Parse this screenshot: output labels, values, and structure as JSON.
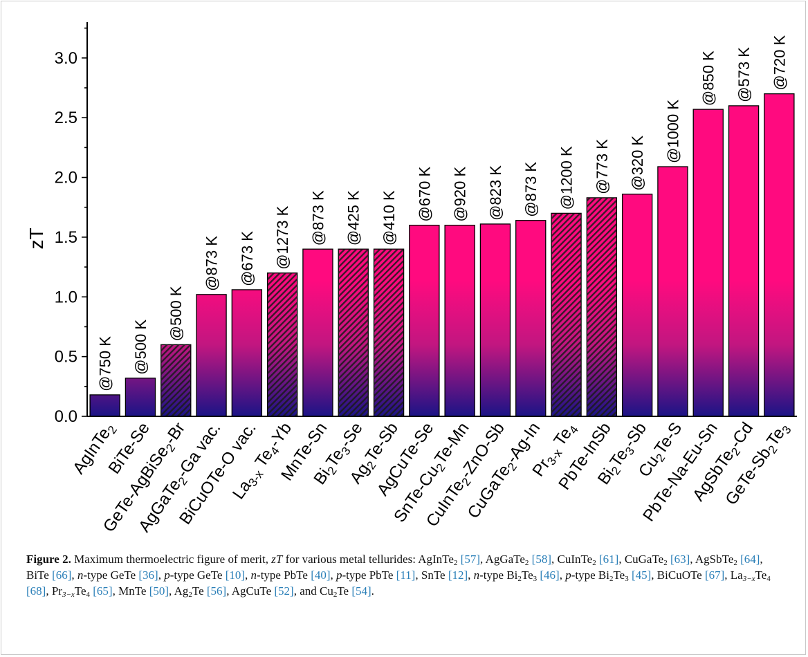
{
  "chart_data": {
    "type": "bar",
    "ylabel": "zT",
    "ylim": [
      0,
      3.3
    ],
    "yticks": [
      "0.0",
      "0.5",
      "1.0",
      "1.5",
      "2.0",
      "2.5",
      "3.0"
    ],
    "grid": false,
    "legend": "none",
    "bars": [
      {
        "parts": [
          [
            "AgInTe",
            ""
          ],
          [
            "2",
            "sub"
          ]
        ],
        "value": 0.18,
        "label": "@750 K",
        "hatched": false
      },
      {
        "parts": [
          [
            "BiTe-Se",
            ""
          ]
        ],
        "value": 0.32,
        "label": "@500 K",
        "hatched": false
      },
      {
        "parts": [
          [
            "GeTe-AgBiSe",
            ""
          ],
          [
            "2",
            "sub"
          ],
          [
            "-Br",
            ""
          ]
        ],
        "value": 0.6,
        "label": "@500 K",
        "hatched": true
      },
      {
        "parts": [
          [
            "AgGaTe",
            ""
          ],
          [
            "2",
            "sub"
          ],
          [
            "-Ga vac.",
            ""
          ]
        ],
        "value": 1.02,
        "label": "@873 K",
        "hatched": false
      },
      {
        "parts": [
          [
            "BiCuOTe-O vac.",
            ""
          ]
        ],
        "value": 1.06,
        "label": "@673 K",
        "hatched": false
      },
      {
        "parts": [
          [
            "La",
            ""
          ],
          [
            "3-x",
            "sub"
          ],
          [
            " Te",
            ""
          ],
          [
            "4",
            "sub"
          ],
          [
            "-Yb",
            ""
          ]
        ],
        "value": 1.2,
        "label": "@1273 K",
        "hatched": true
      },
      {
        "parts": [
          [
            "MnTe-Sn",
            ""
          ]
        ],
        "value": 1.4,
        "label": "@873 K",
        "hatched": false
      },
      {
        "parts": [
          [
            "Bi",
            ""
          ],
          [
            "2",
            "sub"
          ],
          [
            "Te",
            ""
          ],
          [
            "3",
            "sub"
          ],
          [
            "-Se",
            ""
          ]
        ],
        "value": 1.4,
        "label": "@425 K",
        "hatched": true
      },
      {
        "parts": [
          [
            "Ag",
            ""
          ],
          [
            "2",
            "sub"
          ],
          [
            "Te-Sb",
            ""
          ]
        ],
        "value": 1.4,
        "label": "@410 K",
        "hatched": true
      },
      {
        "parts": [
          [
            "AgCuTe-Se",
            ""
          ]
        ],
        "value": 1.6,
        "label": "@670 K",
        "hatched": false
      },
      {
        "parts": [
          [
            "SnTe-Cu",
            ""
          ],
          [
            "2",
            "sub"
          ],
          [
            "Te-Mn",
            ""
          ]
        ],
        "value": 1.6,
        "label": "@920 K",
        "hatched": false
      },
      {
        "parts": [
          [
            "CuInTe",
            ""
          ],
          [
            "2",
            "sub"
          ],
          [
            "-ZnO-Sb",
            ""
          ]
        ],
        "value": 1.61,
        "label": "@823 K",
        "hatched": false
      },
      {
        "parts": [
          [
            "CuGaTe",
            ""
          ],
          [
            "2",
            "sub"
          ],
          [
            "-Ag-In",
            ""
          ]
        ],
        "value": 1.64,
        "label": "@873 K",
        "hatched": false
      },
      {
        "parts": [
          [
            "Pr",
            ""
          ],
          [
            "3-x",
            "sub"
          ],
          [
            " Te",
            ""
          ],
          [
            "4",
            "sub"
          ]
        ],
        "value": 1.7,
        "label": "@1200 K",
        "hatched": true
      },
      {
        "parts": [
          [
            "PbTe-InSb",
            ""
          ]
        ],
        "value": 1.83,
        "label": "@773 K",
        "hatched": true
      },
      {
        "parts": [
          [
            "Bi",
            ""
          ],
          [
            "2",
            "sub"
          ],
          [
            "Te",
            ""
          ],
          [
            "3",
            "sub"
          ],
          [
            "-Sb",
            ""
          ]
        ],
        "value": 1.86,
        "label": "@320 K",
        "hatched": false
      },
      {
        "parts": [
          [
            "Cu",
            ""
          ],
          [
            "2",
            "sub"
          ],
          [
            "Te-S",
            ""
          ]
        ],
        "value": 2.09,
        "label": "@1000 K",
        "hatched": false
      },
      {
        "parts": [
          [
            "PbTe-Na-Eu-Sn",
            ""
          ]
        ],
        "value": 2.57,
        "label": "@850 K",
        "hatched": false
      },
      {
        "parts": [
          [
            "AgSbTe",
            ""
          ],
          [
            "2",
            "sub"
          ],
          [
            "-Cd",
            ""
          ]
        ],
        "value": 2.6,
        "label": "@573 K",
        "hatched": false
      },
      {
        "parts": [
          [
            "GeTe-Sb",
            ""
          ],
          [
            "2",
            "sub"
          ],
          [
            "Te",
            ""
          ],
          [
            "3",
            "sub"
          ]
        ],
        "value": 2.7,
        "label": "@720 K",
        "hatched": false
      }
    ],
    "colors": {
      "top": "#ff0a7f",
      "mid": "#d0187f",
      "bottom": "#1b1486",
      "hatch": "#1a1a1a",
      "axis": "#000000"
    }
  },
  "caption": {
    "label": "Figure 2.",
    "segments": [
      [
        " Maximum thermoelectric figure of merit, ",
        ""
      ],
      [
        "zT",
        "i"
      ],
      [
        " for various metal tellurides: AgInTe",
        ""
      ],
      [
        "2",
        "sub"
      ],
      [
        " ",
        ""
      ],
      [
        "[57]",
        "ref"
      ],
      [
        ", AgGaTe",
        ""
      ],
      [
        "2",
        "sub"
      ],
      [
        " ",
        ""
      ],
      [
        "[58]",
        "ref"
      ],
      [
        ", CuInTe",
        ""
      ],
      [
        "2",
        "sub"
      ],
      [
        " ",
        ""
      ],
      [
        "[61]",
        "ref"
      ],
      [
        ", CuGaTe",
        ""
      ],
      [
        "2",
        "sub"
      ],
      [
        " ",
        ""
      ],
      [
        "[63]",
        "ref"
      ],
      [
        ", AgSbTe",
        ""
      ],
      [
        "2",
        "sub"
      ],
      [
        " ",
        ""
      ],
      [
        "[64]",
        "ref"
      ],
      [
        ", BiTe ",
        ""
      ],
      [
        "[66]",
        "ref"
      ],
      [
        ", ",
        ""
      ],
      [
        "n",
        "i"
      ],
      [
        "-type GeTe ",
        ""
      ],
      [
        "[36]",
        "ref"
      ],
      [
        ", ",
        ""
      ],
      [
        "p",
        "i"
      ],
      [
        "-type GeTe ",
        ""
      ],
      [
        "[10]",
        "ref"
      ],
      [
        ", ",
        ""
      ],
      [
        "n",
        "i"
      ],
      [
        "-type PbTe ",
        ""
      ],
      [
        "[40]",
        "ref"
      ],
      [
        ", ",
        ""
      ],
      [
        "p",
        "i"
      ],
      [
        "-type PbTe ",
        ""
      ],
      [
        "[11]",
        "ref"
      ],
      [
        ", SnTe ",
        ""
      ],
      [
        "[12]",
        "ref"
      ],
      [
        ", ",
        ""
      ],
      [
        "n",
        "i"
      ],
      [
        "-type Bi",
        ""
      ],
      [
        "2",
        "sub"
      ],
      [
        "Te",
        ""
      ],
      [
        "3",
        "sub"
      ],
      [
        " ",
        ""
      ],
      [
        "[46]",
        "ref"
      ],
      [
        ", ",
        ""
      ],
      [
        "p",
        "i"
      ],
      [
        "-type Bi",
        ""
      ],
      [
        "2",
        "sub"
      ],
      [
        "Te",
        ""
      ],
      [
        "3",
        "sub"
      ],
      [
        " ",
        ""
      ],
      [
        "[45]",
        "ref"
      ],
      [
        ", BiCuOTe ",
        ""
      ],
      [
        "[67]",
        "ref"
      ],
      [
        ", La",
        ""
      ],
      [
        "3−x",
        "subi"
      ],
      [
        "Te",
        ""
      ],
      [
        "4",
        "sub"
      ],
      [
        " ",
        ""
      ],
      [
        "[68]",
        "ref"
      ],
      [
        ", Pr",
        ""
      ],
      [
        "3−x",
        "subi"
      ],
      [
        "Te",
        ""
      ],
      [
        "4",
        "sub"
      ],
      [
        " ",
        ""
      ],
      [
        "[65]",
        "ref"
      ],
      [
        ", MnTe ",
        ""
      ],
      [
        "[50]",
        "ref"
      ],
      [
        ", Ag",
        ""
      ],
      [
        "2",
        "sub"
      ],
      [
        "Te ",
        ""
      ],
      [
        "[56]",
        "ref"
      ],
      [
        ", AgCuTe ",
        ""
      ],
      [
        "[52]",
        "ref"
      ],
      [
        ", and Cu",
        ""
      ],
      [
        "2",
        "sub"
      ],
      [
        "Te ",
        ""
      ],
      [
        "[54]",
        "ref"
      ],
      [
        ".",
        ""
      ]
    ]
  }
}
